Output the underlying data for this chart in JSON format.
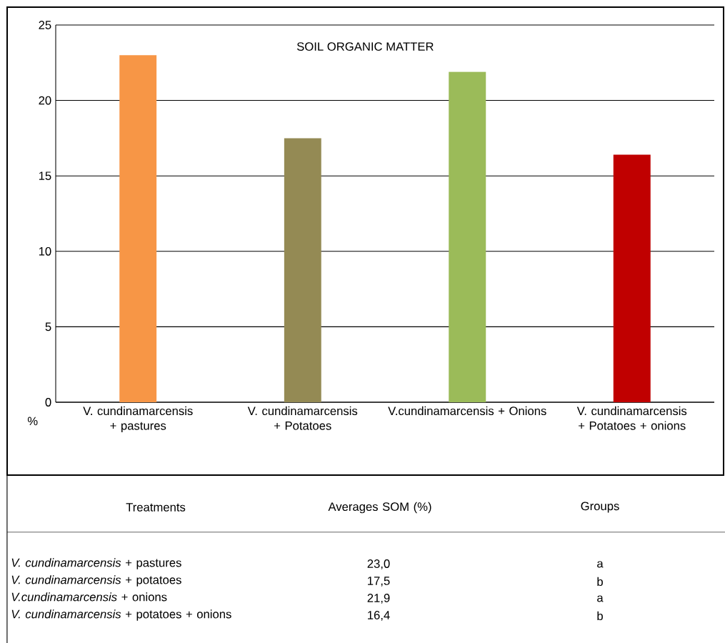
{
  "chart_data": {
    "type": "bar",
    "title": "SOIL ORGANIC MATTER",
    "ylabel": "%",
    "categories": [
      "V. cundinamarcensis + pastures",
      "V. cundinamarcensis + Potatoes",
      "V.cundinamarcensis + Onions",
      "V. cundinamarcensis + Potatoes + onions"
    ],
    "values": [
      23.0,
      17.5,
      21.9,
      16.4
    ],
    "colors": [
      "#f79646",
      "#948a54",
      "#9bbb59",
      "#c00000"
    ],
    "ylim": [
      0,
      25
    ],
    "yticks": [
      0,
      5,
      10,
      15,
      20,
      25
    ],
    "grid": "y",
    "annotations": [
      "Treatments",
      "Averages SOM (%)",
      "Groups",
      "*V. cundinamarcensis* + pastures",
      "*V. cundinamarcensis* + potatoes",
      "*V.cundinamarcensis* + onions",
      "*V. cundinamarcensis* + potatoes + onions",
      "23,0",
      "17,5",
      "21,9",
      "16,4",
      "a",
      "b",
      "a",
      "b"
    ]
  }
}
